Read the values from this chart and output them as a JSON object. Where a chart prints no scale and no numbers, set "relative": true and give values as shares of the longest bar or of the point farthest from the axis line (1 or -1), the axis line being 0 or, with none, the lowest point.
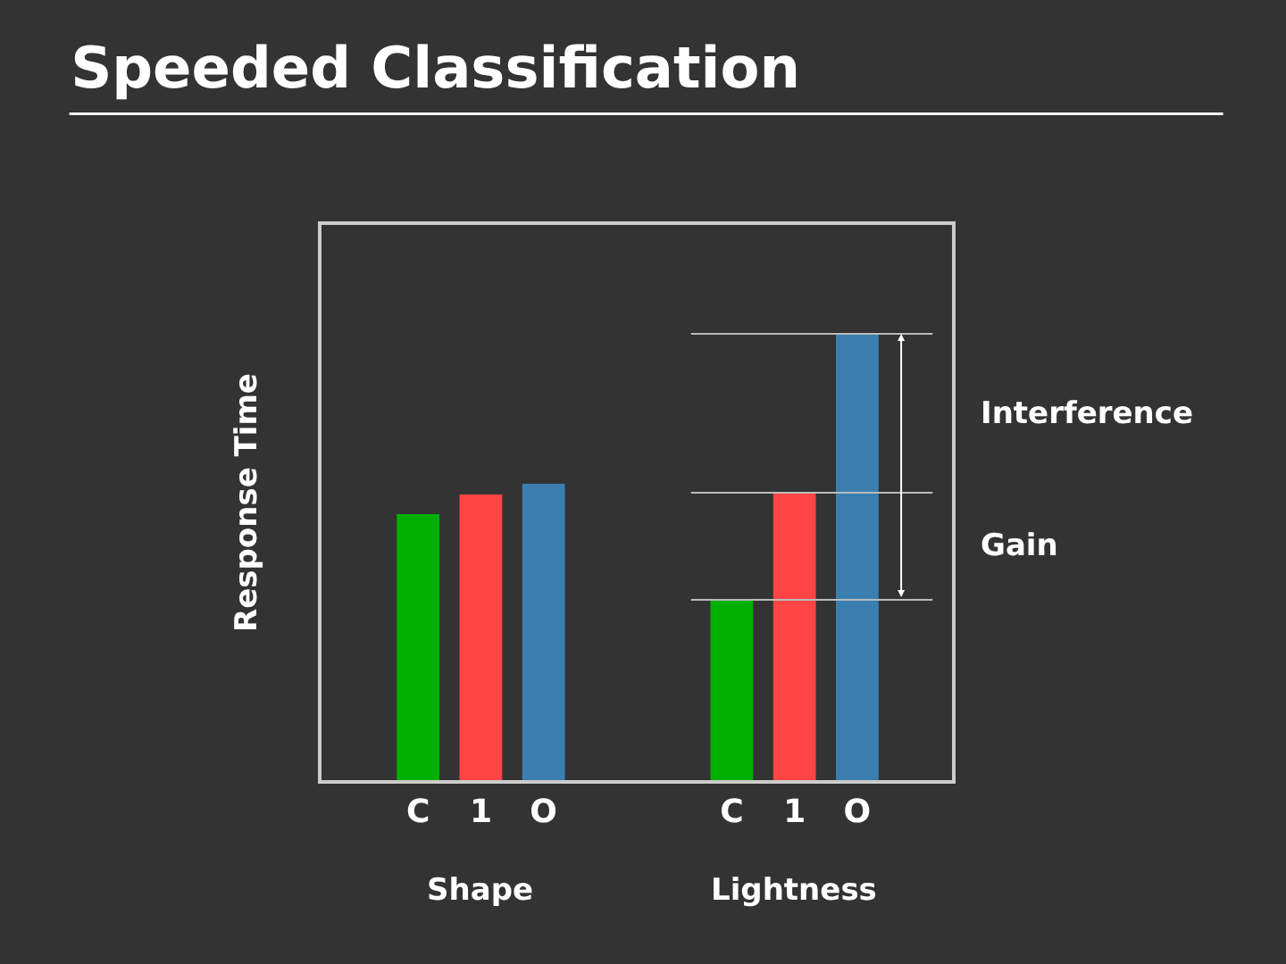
{
  "chart_data": {
    "type": "bar",
    "title": "Speeded Classification",
    "ylabel": "Response Time",
    "relative": true,
    "categories": [
      "C",
      "1",
      "O",
      null,
      null,
      "C",
      "1",
      "O"
    ],
    "values": [
      0.596,
      0.64,
      0.664,
      null,
      null,
      0.404,
      0.644,
      1.0
    ],
    "colors": [
      "#00b000",
      "#ff4444",
      "#3a7fb0",
      null,
      null,
      "#00b000",
      "#ff4444",
      "#3a7fb0"
    ],
    "ref_lines": [
      {
        "axis": "y",
        "value": 1.0,
        "label": null,
        "color": "#bbbbbb"
      },
      {
        "axis": "y",
        "value": 0.644,
        "label": null,
        "color": "#bbbbbb"
      },
      {
        "axis": "y",
        "value": 0.404,
        "label": null,
        "color": "#bbbbbb"
      }
    ],
    "annotations": [
      "Shape",
      "Lightness",
      "Interference",
      "Gain"
    ],
    "grid": false,
    "legend": false
  }
}
